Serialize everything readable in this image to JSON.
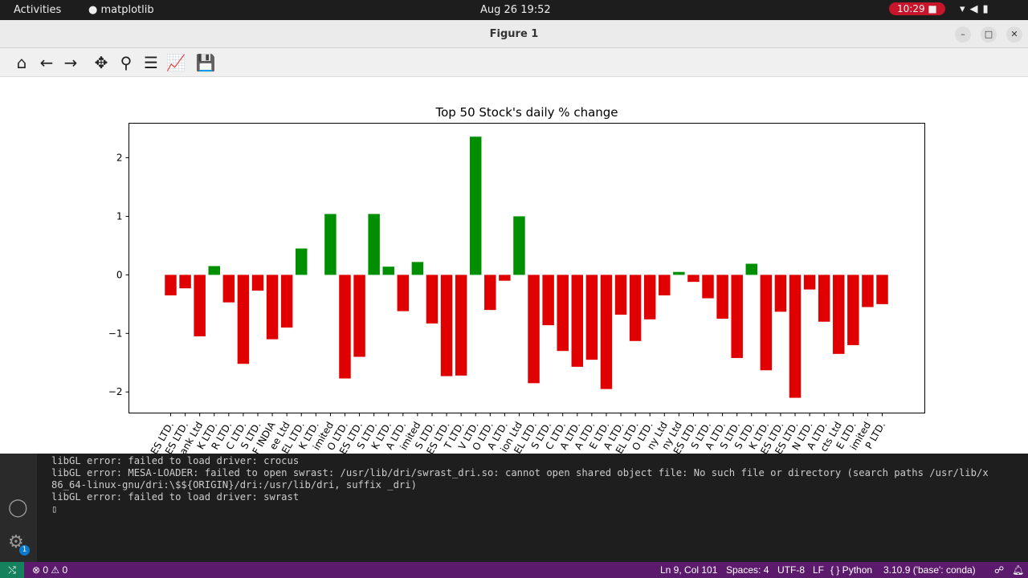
{
  "topbar": {
    "activities": "Activities",
    "app": "matplotlib",
    "clock": "Aug 26  19:52",
    "recording": "10:29"
  },
  "window": {
    "title": "Figure 1"
  },
  "toolbar": {
    "icons": [
      "home-icon",
      "back-icon",
      "forward-icon",
      "pan-icon",
      "zoom-icon",
      "configure-subplots-icon",
      "edit-axis-icon",
      "save-icon"
    ]
  },
  "chart_data": {
    "type": "bar",
    "title": "Top 50 Stock's daily % change",
    "xlabel": "",
    "ylabel": "",
    "ylim": [
      -2.36,
      2.59
    ],
    "yticks": [
      -2,
      -1,
      0,
      1,
      2
    ],
    "ytick_labels": [
      "−2",
      "−1",
      "0",
      "1",
      "2"
    ],
    "positive_color": "#008f00",
    "negative_color": "#e00000",
    "categories": [
      "ES LTD.",
      "ES LTD.",
      "ank Ltd",
      "K LTD.",
      "R LTD.",
      "C LTD.",
      "S LTD.",
      "F INDIA",
      "ee Ltd",
      "EL LTD.",
      "K LTD.",
      "imited",
      "O LTD.",
      "ES LTD.",
      "S LTD.",
      "K LTD.",
      "A LTD.",
      "imited",
      "S LTD.",
      "ES LTD.",
      "T LTD.",
      "V LTD.",
      "O LTD.",
      "A LTD.",
      "ion Ltd",
      "EL LTD.",
      "S LTD.",
      "C LTD.",
      "A LTD.",
      "A LTD.",
      "E LTD.",
      "A LTD.",
      "EL LTD.",
      "O LTD.",
      "ny Ltd",
      "ny Ltd",
      "ES LTD.",
      "S LTD.",
      "A LTD.",
      "S LTD.",
      "S LTD.",
      "K LTD.",
      "ES LTD.",
      "ES LTD.",
      "N LTD.",
      "A LTD.",
      "cts Ltd",
      "E LTD.",
      "imited",
      "P LTD."
    ],
    "values": [
      -0.35,
      -0.23,
      -1.05,
      0.15,
      -0.47,
      -1.52,
      -0.27,
      -1.1,
      -0.9,
      0.45,
      0.0,
      1.04,
      -1.77,
      -1.4,
      1.04,
      0.14,
      -0.62,
      0.22,
      -0.83,
      -1.73,
      -1.72,
      2.36,
      -0.6,
      -0.1,
      1.0,
      -1.85,
      -0.86,
      -1.3,
      -1.57,
      -1.45,
      -1.95,
      -0.68,
      -1.13,
      -0.76,
      -0.35,
      0.05,
      -0.12,
      -0.4,
      -0.75,
      -1.42,
      0.19,
      -1.63,
      -0.63,
      -2.1,
      -0.25,
      -0.8,
      -1.35,
      -1.2,
      -0.55,
      -0.5
    ]
  },
  "terminal": {
    "lines": [
      "libGL error: failed to load driver: crocus",
      "libGL error: MESA-LOADER: failed to open swrast: /usr/lib/dri/swrast_dri.so: cannot open shared object file: No such file or directory (search paths /usr/lib/x",
      "86_64-linux-gnu/dri:\\$${ORIGIN}/dri:/usr/lib/dri, suffix _dri)",
      "libGL error: failed to load driver: swrast",
      "▯"
    ],
    "notification_badge": "1"
  },
  "statusbar": {
    "problems": "⊗ 0 ⚠ 0",
    "position": "Ln 9, Col 101",
    "spaces": "Spaces: 4",
    "encoding": "UTF-8",
    "eol": "LF",
    "language": "{ } Python",
    "interpreter": "3.10.9 ('base': conda)"
  }
}
